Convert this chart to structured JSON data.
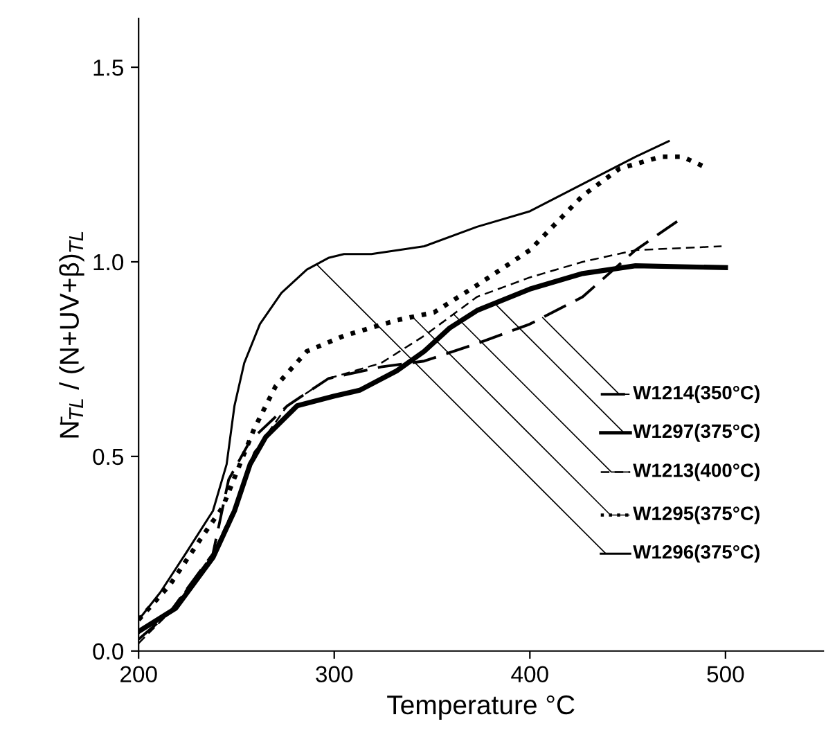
{
  "chart_data": {
    "type": "line",
    "xlabel": "Temperature °C",
    "ylabel": "N̄$_{TL}$ / (N+UV+β)$_{TL}$",
    "xlim": [
      200,
      550
    ],
    "ylim": [
      0,
      1.625
    ],
    "xticks": [
      200,
      300,
      400,
      500
    ],
    "yticks": [
      {
        "value": 0,
        "label": "0.0"
      },
      {
        "value": 0.5,
        "label": "0.5"
      },
      {
        "value": 1,
        "label": "1.0"
      },
      {
        "value": 1.5,
        "label": "1.5"
      }
    ],
    "grid": false,
    "legend": "right",
    "marker": "none",
    "series": [
      {
        "name": "W1214(350°C)",
        "color": "#000000",
        "line_style": "dashed",
        "x": [
          200,
          216,
          238,
          246,
          257,
          276,
          297,
          324,
          346,
          373,
          400,
          427,
          454,
          477
        ],
        "values": [
          0.03,
          0.1,
          0.25,
          0.44,
          0.54,
          0.63,
          0.7,
          0.73,
          0.745,
          0.79,
          0.84,
          0.91,
          1.03,
          1.11
        ]
      },
      {
        "name": "W1297(375°C)",
        "color": "#000000",
        "line_style": "solid",
        "x": [
          200,
          219,
          238,
          249,
          257,
          265,
          281,
          300,
          313,
          332,
          346,
          359,
          373,
          400,
          427,
          454,
          500
        ],
        "values": [
          0.05,
          0.11,
          0.24,
          0.36,
          0.48,
          0.55,
          0.63,
          0.655,
          0.67,
          0.72,
          0.77,
          0.83,
          0.875,
          0.93,
          0.97,
          0.99,
          0.985
        ]
      },
      {
        "name": "W1213(400°C)",
        "color": "#000000",
        "line_style": "dashed",
        "x": [
          200,
          216,
          238,
          249,
          259,
          276,
          297,
          324,
          346,
          373,
          400,
          427,
          454,
          498
        ],
        "values": [
          0.02,
          0.1,
          0.25,
          0.37,
          0.51,
          0.63,
          0.7,
          0.74,
          0.81,
          0.91,
          0.96,
          1.0,
          1.03,
          1.04
        ]
      },
      {
        "name": "W1295(375°C)",
        "color": "#000000",
        "line_style": "dotted",
        "x": [
          200,
          216,
          232,
          243,
          251,
          259,
          270,
          286,
          305,
          332,
          351,
          373,
          400,
          427,
          446,
          467,
          478,
          491
        ],
        "values": [
          0.08,
          0.17,
          0.29,
          0.37,
          0.47,
          0.57,
          0.68,
          0.77,
          0.81,
          0.85,
          0.87,
          0.94,
          1.03,
          1.17,
          1.24,
          1.27,
          1.27,
          1.24
        ]
      },
      {
        "name": "W1296(375°C)",
        "color": "#000000",
        "line_style": "solid",
        "x": [
          200,
          211,
          224,
          238,
          245,
          249,
          254,
          262,
          273,
          286,
          297,
          305,
          319,
          346,
          373,
          400,
          427,
          454,
          471
        ],
        "values": [
          0.08,
          0.15,
          0.25,
          0.36,
          0.48,
          0.63,
          0.74,
          0.84,
          0.92,
          0.98,
          1.01,
          1.02,
          1.02,
          1.04,
          1.09,
          1.13,
          1.2,
          1.27,
          1.31
        ]
      }
    ]
  }
}
